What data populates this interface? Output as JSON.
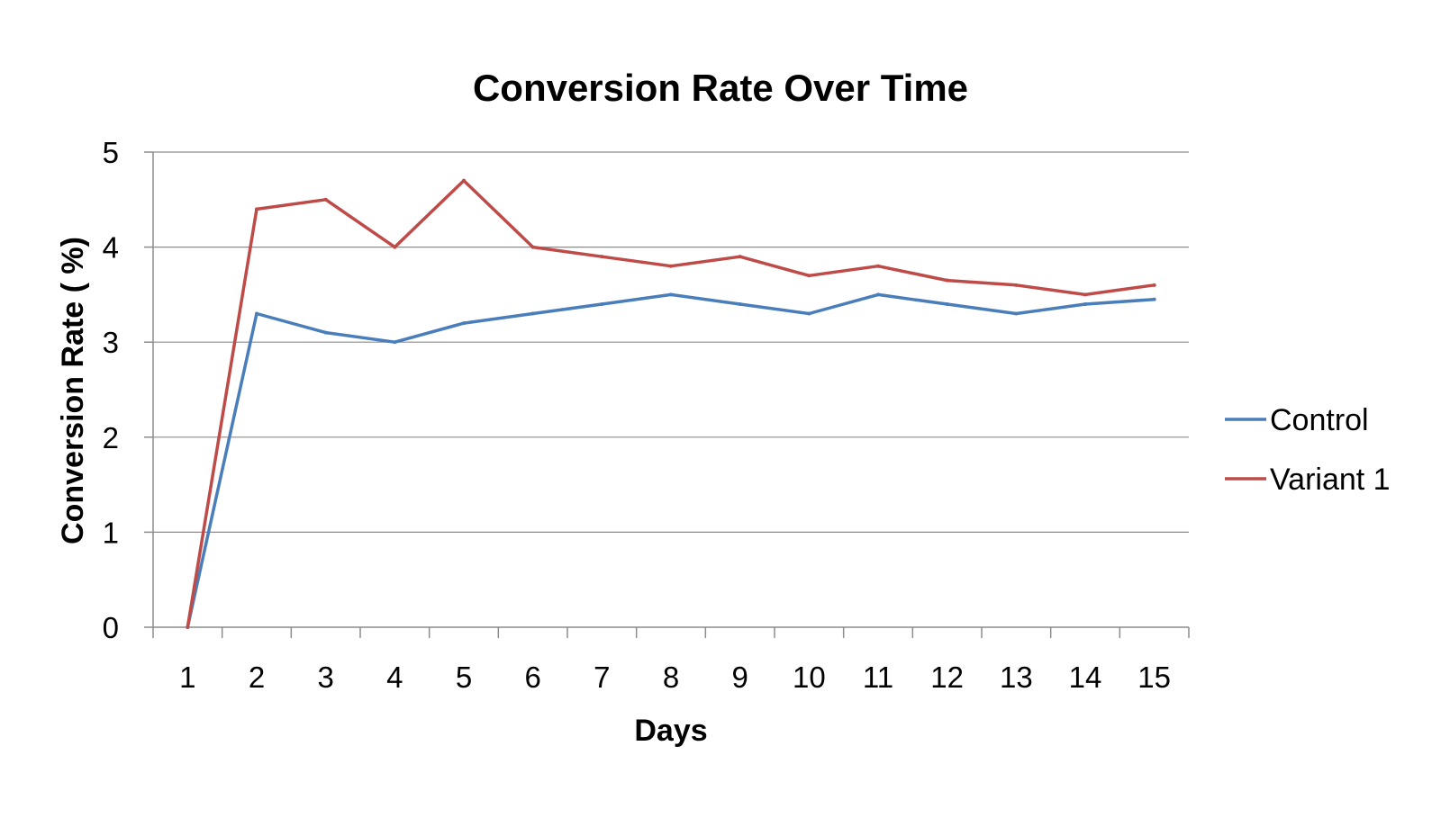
{
  "chart_data": {
    "type": "line",
    "title": "Conversion Rate Over Time",
    "xlabel": "Days",
    "ylabel": "Conversion Rate ( %)",
    "categories": [
      "1",
      "2",
      "3",
      "4",
      "5",
      "6",
      "7",
      "8",
      "9",
      "10",
      "11",
      "12",
      "13",
      "14",
      "15"
    ],
    "y_ticks": [
      "0",
      "1",
      "2",
      "3",
      "4",
      "5"
    ],
    "ylim": [
      0,
      5
    ],
    "grid": true,
    "legend_position": "right",
    "series": [
      {
        "name": "Control",
        "color": "#4a7ebb",
        "values": [
          0,
          3.3,
          3.1,
          3.0,
          3.2,
          3.3,
          3.4,
          3.5,
          3.4,
          3.3,
          3.5,
          3.4,
          3.3,
          3.4,
          3.45
        ]
      },
      {
        "name": "Variant 1",
        "color": "#be4b48",
        "values": [
          0,
          4.4,
          4.5,
          4.0,
          4.7,
          4.0,
          3.9,
          3.8,
          3.9,
          3.7,
          3.8,
          3.65,
          3.6,
          3.5,
          3.6
        ]
      }
    ]
  }
}
